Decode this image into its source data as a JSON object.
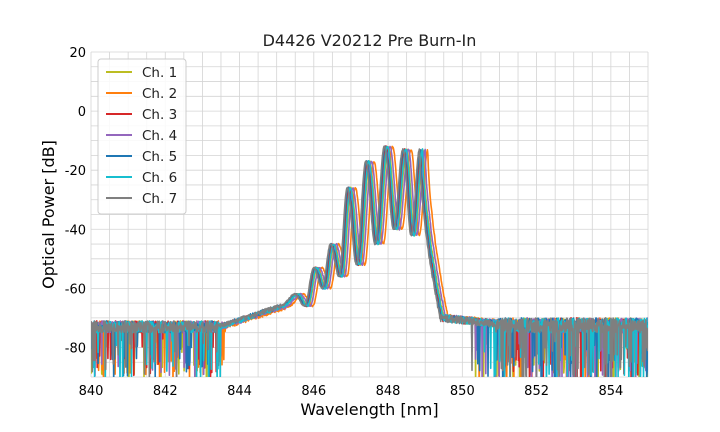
{
  "chart_data": {
    "type": "line",
    "title": "D4426 V20212 Pre Burn-In",
    "xlabel": "Wavelength [nm]",
    "ylabel": "Optical Power [dB]",
    "xlim": [
      840,
      855
    ],
    "ylim": [
      -90,
      20
    ],
    "xticks": [
      840,
      842,
      844,
      846,
      848,
      850,
      852,
      854
    ],
    "yticks": [
      -80,
      -60,
      -40,
      -20,
      0,
      20
    ],
    "x_minor_step": 0.5,
    "y_minor_step": 5,
    "grid": true,
    "legend_position": "top-left",
    "series": [
      {
        "name": "Ch. 1",
        "color": "#bcbd22",
        "shift": 0.0,
        "seed": 11
      },
      {
        "name": "Ch. 2",
        "color": "#ff7f0e",
        "shift": 0.12,
        "seed": 23
      },
      {
        "name": "Ch. 3",
        "color": "#d62728",
        "shift": -0.05,
        "seed": 37
      },
      {
        "name": "Ch. 4",
        "color": "#9467bd",
        "shift": 0.05,
        "seed": 41
      },
      {
        "name": "Ch. 5",
        "color": "#1f77b4",
        "shift": -0.08,
        "seed": 53
      },
      {
        "name": "Ch. 6",
        "color": "#17becf",
        "shift": -0.02,
        "seed": 67
      },
      {
        "name": "Ch. 7",
        "color": "#7f7f7f",
        "shift": -0.1,
        "seed": 79
      }
    ],
    "spectrum_shape": {
      "noise_floor_db": -73,
      "floor_rise_start_nm": 843.5,
      "floor_rise_end_nm": 845.2,
      "floor_rise_end_db": -66,
      "band_edge_nm": 849.1,
      "post_edge_level_db": -70,
      "peaks": [
        {
          "x": 845.6,
          "y": -62
        },
        {
          "x": 846.1,
          "y": -53
        },
        {
          "x": 846.55,
          "y": -45
        },
        {
          "x": 847.0,
          "y": -26
        },
        {
          "x": 847.5,
          "y": -17
        },
        {
          "x": 848.0,
          "y": -12
        },
        {
          "x": 848.5,
          "y": -13
        },
        {
          "x": 848.95,
          "y": -13
        }
      ],
      "dips": [
        {
          "x": 845.85,
          "y": -66
        },
        {
          "x": 846.33,
          "y": -60
        },
        {
          "x": 846.78,
          "y": -56
        },
        {
          "x": 847.25,
          "y": -52
        },
        {
          "x": 847.75,
          "y": -45
        },
        {
          "x": 848.25,
          "y": -40
        },
        {
          "x": 848.72,
          "y": -42
        }
      ]
    }
  }
}
